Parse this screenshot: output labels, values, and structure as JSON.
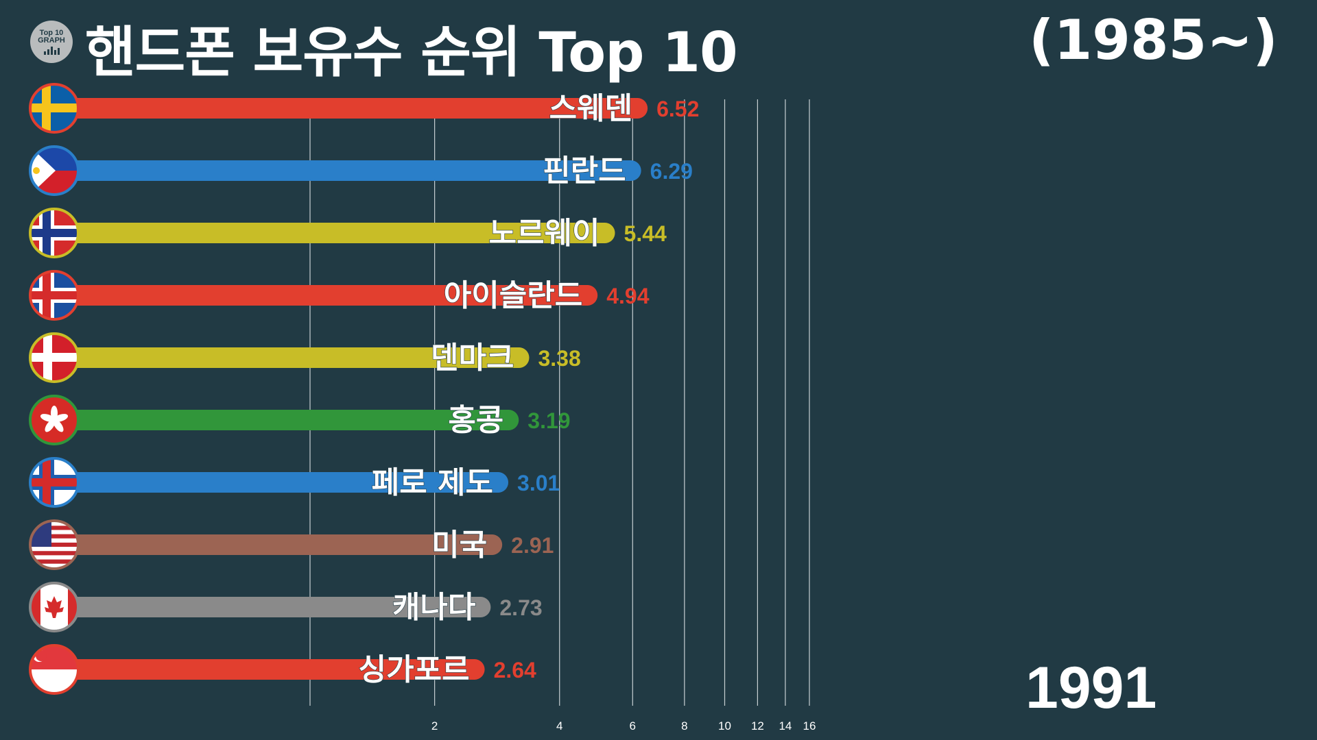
{
  "header": {
    "title": "핸드폰 보유수 순위 Top 10",
    "period": "(1985~)",
    "logo_line1": "Top 10",
    "logo_line2": "GRAPH"
  },
  "current_year": "1991",
  "chart_data": {
    "type": "bar",
    "orientation": "horizontal",
    "title": "핸드폰 보유수 순위 Top 10",
    "x_scale": "log",
    "x_ticks": [
      2,
      4,
      6,
      8,
      10,
      12,
      14,
      16
    ],
    "categories": [
      "스웨덴",
      "핀란드",
      "노르웨이",
      "아이슬란드",
      "덴마크",
      "홍콩",
      "페로 제도",
      "미국",
      "캐나다",
      "싱가포르"
    ],
    "values": [
      6.52,
      6.29,
      5.44,
      4.94,
      3.38,
      3.19,
      3.01,
      2.91,
      2.73,
      2.64
    ],
    "value_labels": [
      "6.52",
      "6.29",
      "5.44",
      "4.94",
      "3.38",
      "3.19",
      "3.01",
      "2.91",
      "2.73",
      "2.64"
    ],
    "colors": [
      "#e23f2f",
      "#2a7fc9",
      "#c8bd27",
      "#e23f2f",
      "#c8bd27",
      "#31963a",
      "#2a7fc9",
      "#9c6453",
      "#8a8a8a",
      "#e23f2f"
    ],
    "flags": [
      "sweden-flag",
      "philippines-flag",
      "norway-flag",
      "iceland-flag",
      "denmark-flag",
      "hong-kong-flag",
      "faroe-islands-flag",
      "usa-flag",
      "canada-flag",
      "singapore-flag"
    ]
  }
}
